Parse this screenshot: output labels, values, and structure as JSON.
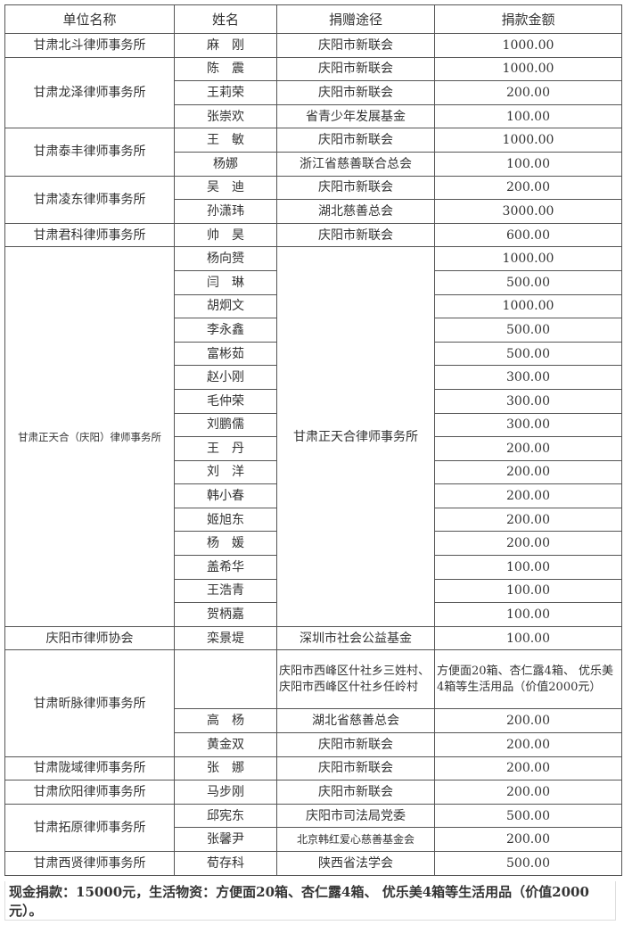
{
  "header": {
    "unit": "单位名称",
    "name": "姓名",
    "channel": "捐赠途径",
    "amount": "捐款金额"
  },
  "groups": [
    {
      "unit": "甘肃北斗律师事务所",
      "rows": [
        {
          "name": "麻　刚",
          "channel": "庆阳市新联会",
          "amount": "1000.00"
        }
      ]
    },
    {
      "unit": "甘肃龙泽律师事务所",
      "rows": [
        {
          "name": "陈　震",
          "channel": "庆阳市新联会",
          "amount": "1000.00"
        },
        {
          "name": "王莉荣",
          "channel": "庆阳市新联会",
          "amount": "200.00"
        },
        {
          "name": "张崇欢",
          "channel": "省青少年发展基金",
          "amount": "100.00"
        }
      ]
    },
    {
      "unit": "甘肃泰丰律师事务所",
      "rows": [
        {
          "name": "王　敏",
          "channel": "庆阳市新联会",
          "amount": "1000.00"
        },
        {
          "name": "杨娜",
          "channel": "浙江省慈善联合总会",
          "amount": "100.00"
        }
      ]
    },
    {
      "unit": "甘肃凌东律师事务所",
      "rows": [
        {
          "name": "吴　迪",
          "channel": "庆阳市新联会",
          "amount": "200.00"
        },
        {
          "name": "孙潇玮",
          "channel": "湖北慈善总会",
          "amount": "3000.00"
        }
      ]
    },
    {
      "unit": "甘肃君科律师事务所",
      "rows": [
        {
          "name": "帅　昊",
          "channel": "庆阳市新联会",
          "amount": "600.00"
        }
      ]
    },
    {
      "unit": "甘肃正天合（庆阳）律师事务所",
      "unit_small": true,
      "shared_channel": "甘肃正天合律师事务所",
      "rows": [
        {
          "name": "杨向赟",
          "amount": "1000.00"
        },
        {
          "name": "闫　琳",
          "amount": "500.00"
        },
        {
          "name": "胡炯文",
          "amount": "1000.00"
        },
        {
          "name": "李永鑫",
          "amount": "500.00"
        },
        {
          "name": "富彬茹",
          "amount": "500.00"
        },
        {
          "name": "赵小刚",
          "amount": "300.00"
        },
        {
          "name": "毛仲荣",
          "amount": "300.00"
        },
        {
          "name": "刘鹏儒",
          "amount": "300.00"
        },
        {
          "name": "王　丹",
          "amount": "200.00"
        },
        {
          "name": "刘　洋",
          "amount": "200.00"
        },
        {
          "name": "韩小春",
          "amount": "200.00"
        },
        {
          "name": "姬旭东",
          "amount": "200.00"
        },
        {
          "name": "杨　媛",
          "amount": "200.00"
        },
        {
          "name": "盖希华",
          "amount": "100.00"
        },
        {
          "name": "王浩青",
          "amount": "100.00"
        },
        {
          "name": "贺柄嘉",
          "amount": "100.00"
        }
      ]
    },
    {
      "unit": "庆阳市律师协会",
      "rows": [
        {
          "name": "栾景堤",
          "channel": "深圳市社会公益基金",
          "amount": "100.00"
        }
      ]
    },
    {
      "unit": "甘肃昕脉律师事务所",
      "rows": [
        {
          "name": "",
          "channel": "庆阳市西峰区什社乡三姓村、 庆阳市西峰区什社乡任岭村",
          "amount": "方便面20箱、杏仁露4箱、 优乐美4箱等生活用品（价值2000元）",
          "tall": true
        },
        {
          "name": "高　杨",
          "channel": "湖北省慈善总会",
          "amount": "200.00"
        },
        {
          "name": "黄金双",
          "channel": "庆阳市新联会",
          "amount": "200.00"
        }
      ]
    },
    {
      "unit": "甘肃陇域律师事务所",
      "rows": [
        {
          "name": "张　娜",
          "channel": "庆阳市新联会",
          "amount": "200.00"
        }
      ]
    },
    {
      "unit": "甘肃欣阳律师事务所",
      "rows": [
        {
          "name": "马步刚",
          "channel": "庆阳市新联会",
          "amount": "200.00"
        }
      ]
    },
    {
      "unit": "甘肃拓原律师事务所",
      "rows": [
        {
          "name": "邱宪东",
          "channel": "庆阳市司法局党委",
          "amount": "500.00"
        },
        {
          "name": "张馨尹",
          "channel": "北京韩红爱心慈善基金会",
          "amount": "200.00",
          "small_channel": true
        }
      ]
    },
    {
      "unit": "甘肃西贤律师事务所",
      "rows": [
        {
          "name": "荀存科",
          "channel": "陕西省法学会",
          "amount": "500.00"
        }
      ]
    }
  ],
  "footer": "现金捐款：15000元，生活物资：方便面20箱、杏仁露4箱、 优乐美4箱等生活用品（价值2000元）。"
}
